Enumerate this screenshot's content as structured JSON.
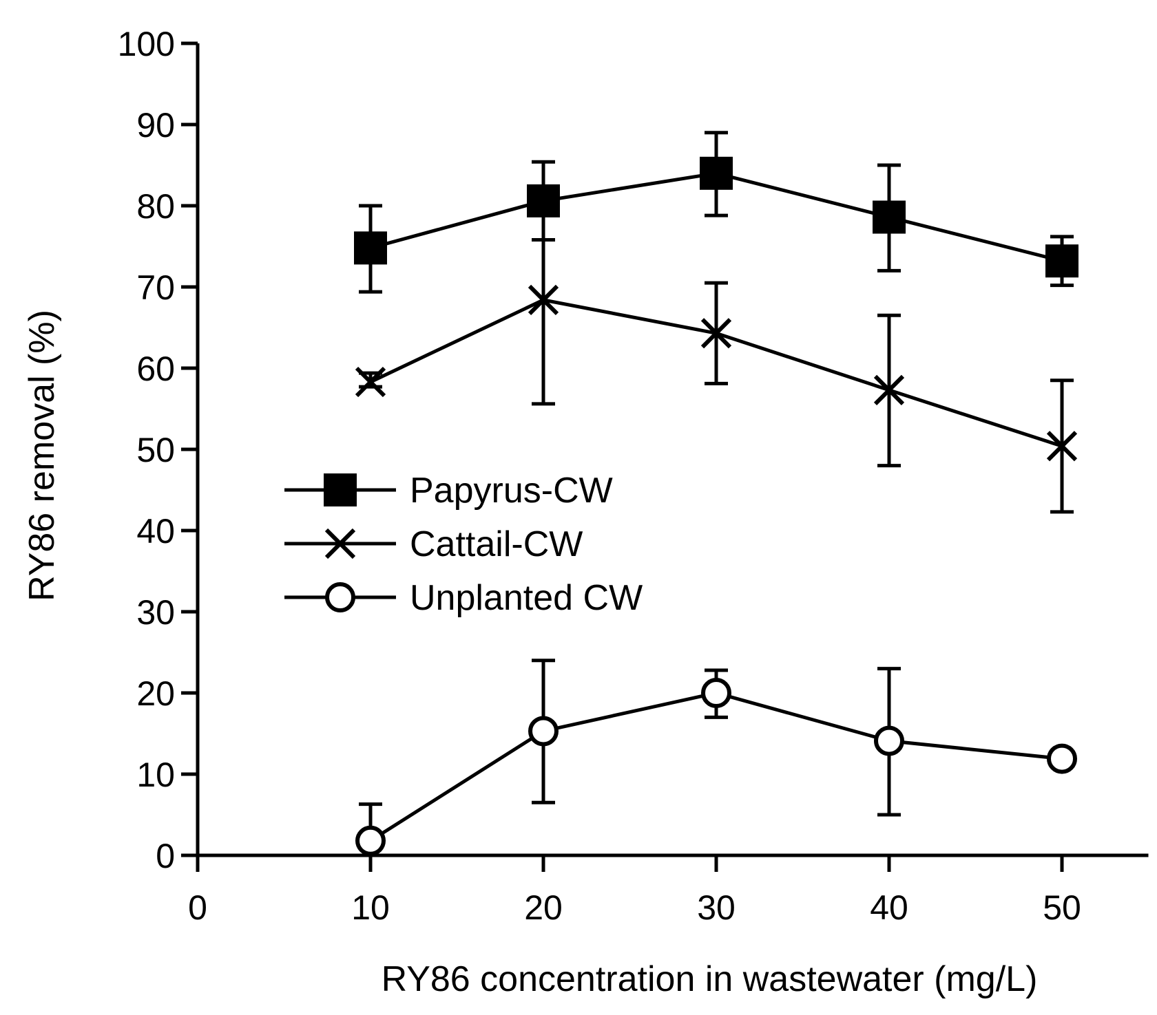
{
  "chart_data": {
    "type": "line",
    "title": "",
    "xlabel": "RY86 concentration in wastewater (mg/L)",
    "ylabel": "RY86 removal (%)",
    "xlim": [
      0,
      55
    ],
    "ylim": [
      0,
      100
    ],
    "x_ticks": [
      0,
      10,
      20,
      30,
      40,
      50
    ],
    "y_ticks": [
      0,
      10,
      20,
      30,
      40,
      50,
      60,
      70,
      80,
      90,
      100
    ],
    "grid": false,
    "legend_position": "center-left",
    "series": [
      {
        "name": "Papyrus-CW",
        "marker": "square-filled",
        "x": [
          10,
          20,
          30,
          40,
          50
        ],
        "y": [
          74.8,
          80.6,
          84.0,
          78.6,
          73.2
        ],
        "error_low": [
          69.4,
          75.8,
          78.8,
          72.0,
          70.2
        ],
        "error_high": [
          80.0,
          85.4,
          89.0,
          85.0,
          76.2
        ]
      },
      {
        "name": "Cattail-CW",
        "marker": "x",
        "x": [
          10,
          20,
          30,
          40,
          50
        ],
        "y": [
          58.3,
          68.4,
          64.3,
          57.3,
          50.4
        ],
        "error_low": [
          57.7,
          55.6,
          58.1,
          48.0,
          42.3
        ],
        "error_high": [
          59.4,
          75.8,
          70.5,
          66.5,
          58.5
        ]
      },
      {
        "name": "Unplanted CW",
        "marker": "circle-open",
        "x": [
          10,
          20,
          30,
          40,
          50
        ],
        "y": [
          1.8,
          15.3,
          20.0,
          14.1,
          11.9
        ],
        "error_low": [
          1.8,
          6.5,
          17.0,
          5.0,
          11.9
        ],
        "error_high": [
          6.3,
          24.0,
          22.8,
          23.0,
          11.9
        ]
      }
    ]
  }
}
